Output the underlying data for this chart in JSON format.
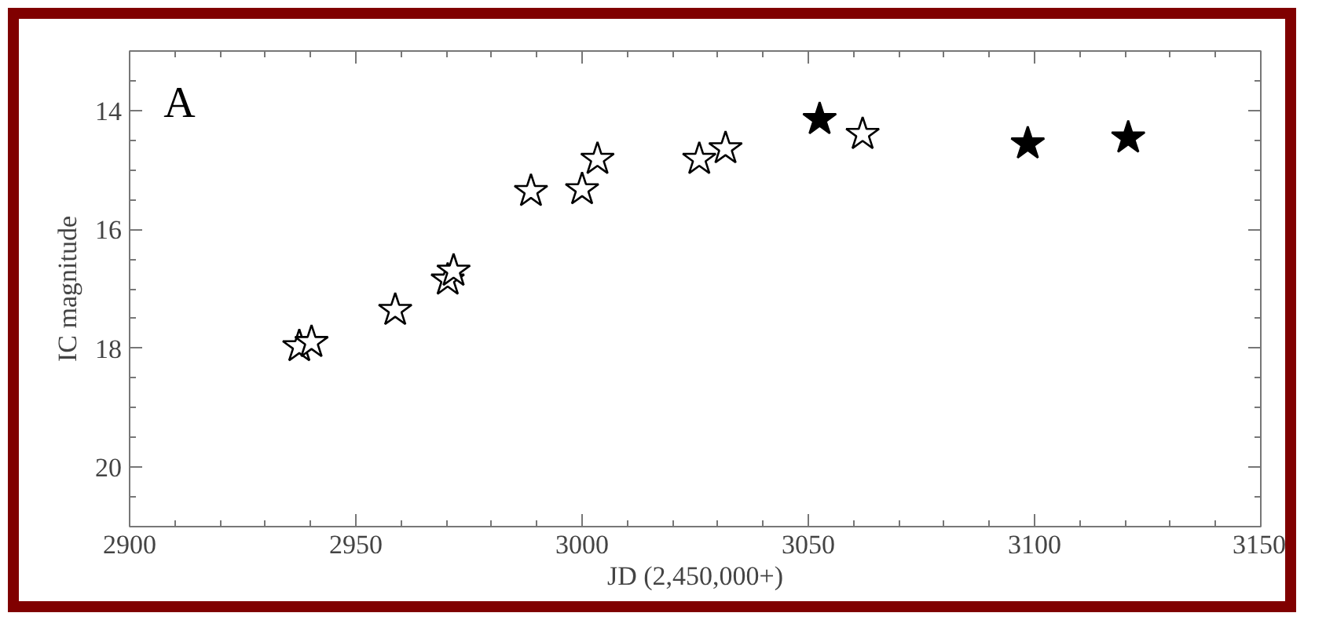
{
  "chart_data": {
    "type": "scatter",
    "xlabel": "JD (2,450,000+)",
    "ylabel": "IC magnitude",
    "annotations": [
      "A"
    ],
    "marker": "star",
    "grid": false,
    "xlim": [
      2900,
      3150
    ],
    "xticks": [
      2900,
      2950,
      3000,
      3050,
      3100,
      3150
    ],
    "ylim": [
      21,
      13
    ],
    "yticks": [
      14,
      16,
      18,
      20
    ],
    "series": [
      {
        "color": "#ffffff",
        "x": [
          2937.5,
          2940.2,
          2958.7,
          2970.3,
          2971.6,
          2988.7,
          3000.0,
          3003.4,
          3025.9,
          3031.7,
          3062.0
        ],
        "values": [
          17.97,
          17.9,
          17.36,
          16.85,
          16.7,
          15.36,
          15.33,
          14.82,
          14.82,
          14.64,
          14.4
        ]
      },
      {
        "color": "#000000",
        "x": [
          3052.5,
          3098.5,
          3120.7
        ],
        "values": [
          14.15,
          14.56,
          14.46
        ]
      }
    ]
  }
}
